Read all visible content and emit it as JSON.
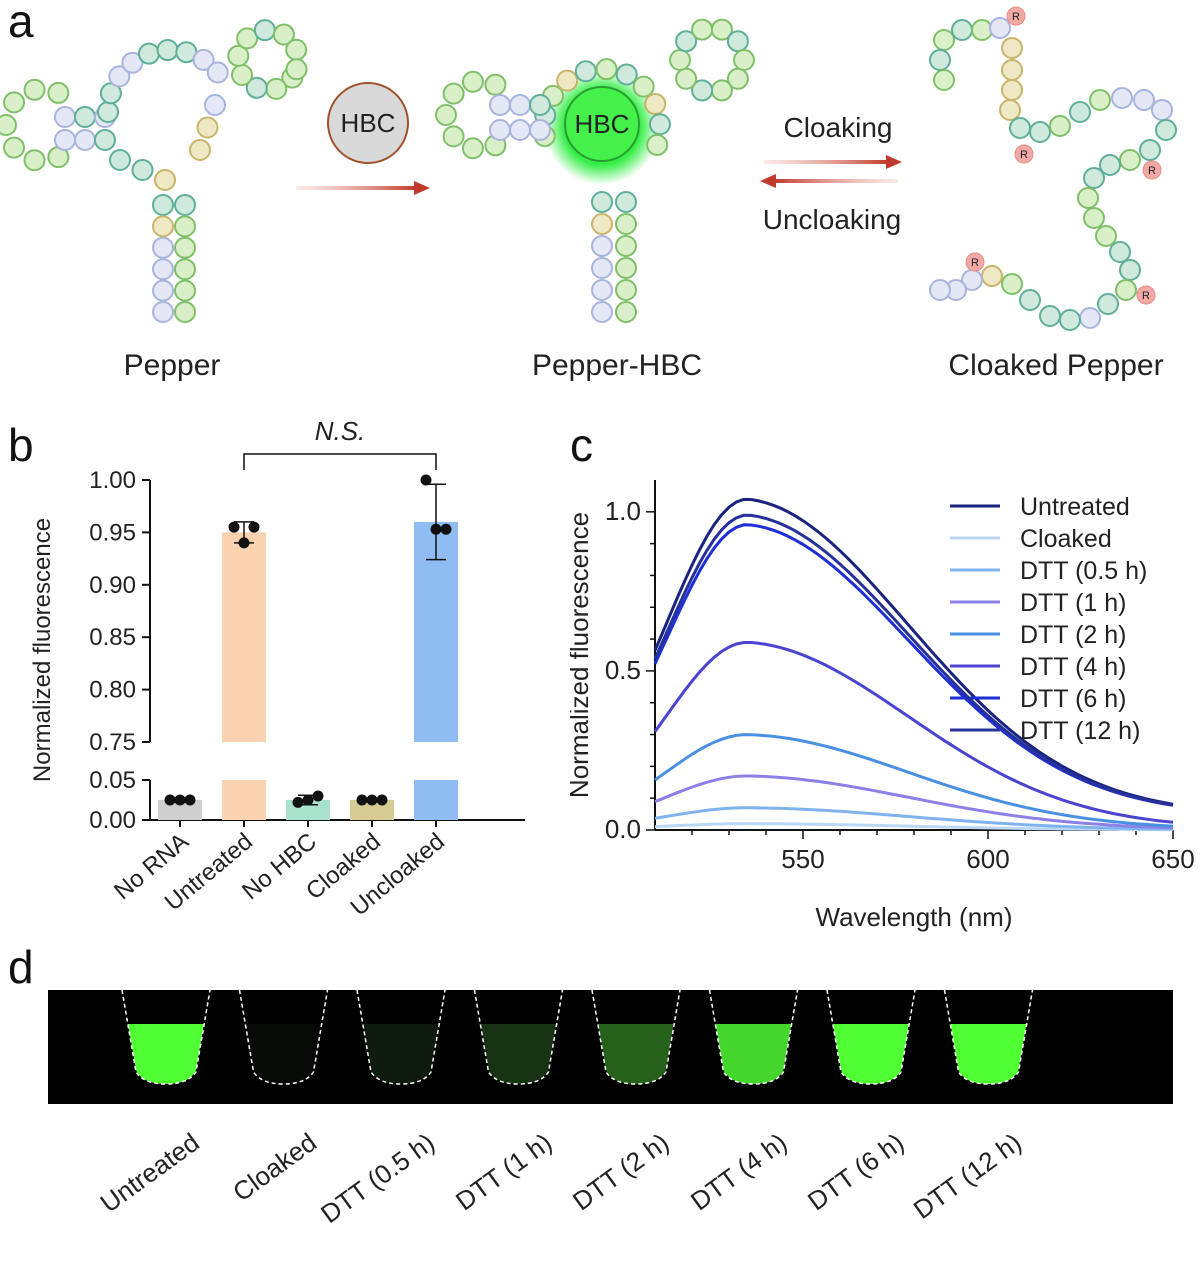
{
  "panels": {
    "a": "a",
    "b": "b",
    "c": "c",
    "d": "d"
  },
  "panel_a": {
    "pepper_label": "Pepper",
    "hbc_label": "HBC",
    "complex_hbc_label": "HBC",
    "complex_label": "Pepper-HBC",
    "cloaking_label": "Cloaking",
    "uncloaking_label": "Uncloaking",
    "cloaked_label": "Cloaked Pepper",
    "r_badge": "R",
    "colors": {
      "green": "#7fbf6a",
      "teal": "#5fae9a",
      "lavender": "#a9b4dc",
      "olive": "#c8b46a",
      "red_arrow": "#c0392b",
      "hbc_glow": "#33ee44",
      "r_badge": "#f2a9a6"
    }
  },
  "chart_data": [
    {
      "type": "bar",
      "panel": "b",
      "categories": [
        "No RNA",
        "Untreated",
        "No HBC",
        "Cloaked",
        "Uncloaked"
      ],
      "values": [
        0.025,
        0.95,
        0.025,
        0.025,
        0.96
      ],
      "error": [
        0.003,
        0.01,
        0.006,
        0.002,
        0.036
      ],
      "points": [
        [
          0.025,
          0.025,
          0.025
        ],
        [
          0.955,
          0.94,
          0.955
        ],
        [
          0.022,
          0.025,
          0.03
        ],
        [
          0.025,
          0.025,
          0.025
        ],
        [
          1.0,
          0.953,
          0.953
        ]
      ],
      "bar_colors": [
        "#cfcfcf",
        "#f9d3b0",
        "#a8e2cd",
        "#d6cc93",
        "#8fbcf2"
      ],
      "ylabel": "Normalized fluorescence",
      "y_broken_axis": {
        "lower": [
          0,
          0.05
        ],
        "upper": [
          0.75,
          1.0
        ]
      },
      "yticks_lower": [
        "0.00",
        "0.05"
      ],
      "yticks_upper": [
        "0.75",
        "0.80",
        "0.85",
        "0.90",
        "0.95",
        "1.00"
      ],
      "annotation": "N.S."
    },
    {
      "type": "line",
      "panel": "c",
      "xlabel": "Wavelength (nm)",
      "ylabel": "Normalized fluorescence",
      "xlim": [
        510,
        650
      ],
      "ylim": [
        0,
        1.1
      ],
      "xticks": [
        "550",
        "600",
        "650"
      ],
      "yticks": [
        "0.0",
        "0.5",
        "1.0"
      ],
      "legend_position": "top-right",
      "peak_x": 535,
      "series": [
        {
          "name": "Untreated",
          "peak": 1.0,
          "color": "#1a237e"
        },
        {
          "name": "Cloaked",
          "peak": 0.02,
          "color": "#bcd7f5"
        },
        {
          "name": "DTT (0.5 h)",
          "peak": 0.07,
          "color": "#7fb3ee"
        },
        {
          "name": "DTT (1 h)",
          "peak": 0.17,
          "color": "#8c7fe6"
        },
        {
          "name": "DTT (2 h)",
          "peak": 0.3,
          "color": "#4a90e2"
        },
        {
          "name": "DTT (4 h)",
          "peak": 0.59,
          "color": "#4b44d0"
        },
        {
          "name": "DTT (6 h)",
          "peak": 0.92,
          "color": "#1f2fd6"
        },
        {
          "name": "DTT (12 h)",
          "peak": 0.95,
          "color": "#26319a"
        }
      ]
    }
  ],
  "panel_d": {
    "tubes": [
      {
        "label": "Untreated",
        "intensity": 1.0
      },
      {
        "label": "Cloaked",
        "intensity": 0.05
      },
      {
        "label": "DTT  (0.5 h)",
        "intensity": 0.2
      },
      {
        "label": "DTT  (1 h)",
        "intensity": 0.35
      },
      {
        "label": "DTT  (2 h)",
        "intensity": 0.55
      },
      {
        "label": "DTT  (4 h)",
        "intensity": 0.9
      },
      {
        "label": "DTT  (6 h)",
        "intensity": 1.0
      },
      {
        "label": "DTT  (12 h)",
        "intensity": 1.0
      }
    ]
  }
}
